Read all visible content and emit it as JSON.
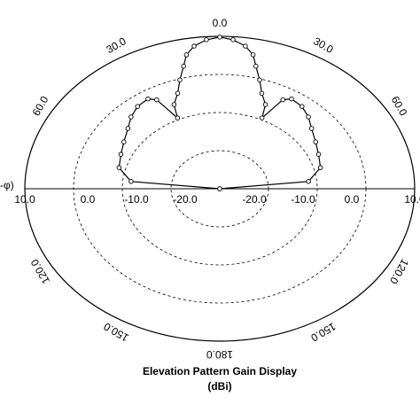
{
  "chart_data": {
    "type": "polar",
    "title": "Elevation Pattern Gain Display",
    "subtitle": "(dBi)",
    "angle_axis_label": "-φ)",
    "theta": [
      -90,
      -84,
      -75,
      -66,
      -58,
      -50,
      -44,
      -38,
      -32,
      -29,
      -25,
      -23,
      -19,
      -16,
      -13,
      -11,
      -8,
      -4,
      0,
      4,
      8,
      11,
      13,
      16,
      19,
      23,
      25,
      29,
      32,
      38,
      44,
      50,
      58,
      66,
      75,
      84,
      90
    ],
    "values": [
      -30,
      -11.7,
      -8.6,
      -7.8,
      -6.8,
      -5.4,
      -3.8,
      -2.6,
      -2.2,
      -3.3,
      -9.5,
      -6,
      -3.5,
      -0.3,
      3,
      5.8,
      7.8,
      9.2,
      9.8,
      9.2,
      7.8,
      5.8,
      3,
      -0.3,
      -3.5,
      -6,
      -9.5,
      -3.3,
      -2.2,
      -2.6,
      -3.8,
      -5.4,
      -6.8,
      -7.8,
      -8.6,
      -11.7,
      -30
    ],
    "color": "#000000",
    "rlim": [
      -30,
      10
    ],
    "rticks": [
      {
        "value": -20,
        "label": "-20.0"
      },
      {
        "value": -10,
        "label": "-10.0"
      },
      {
        "value": 0,
        "label": "0.0"
      },
      {
        "value": 10,
        "label": "10.0"
      }
    ],
    "thetaticks": [
      {
        "value": 0,
        "label": "0.0"
      },
      {
        "value": 30,
        "label": "30.0"
      },
      {
        "value": 60,
        "label": "60.0"
      },
      {
        "value": 120,
        "label": "120.0"
      },
      {
        "value": 150,
        "label": "150.0"
      },
      {
        "value": 180,
        "label": "180.0"
      },
      {
        "value": -30,
        "label": "30.0"
      },
      {
        "value": -60,
        "label": "60.0"
      },
      {
        "value": -120,
        "label": "120.0"
      },
      {
        "value": -150,
        "label": "150.0"
      }
    ],
    "grid": true
  }
}
